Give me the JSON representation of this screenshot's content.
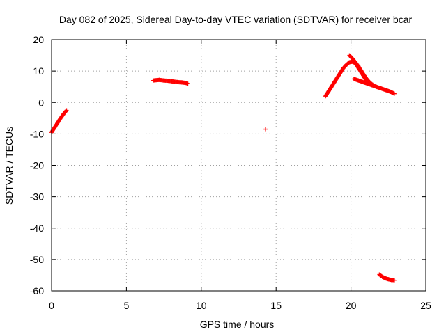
{
  "chart_data": {
    "type": "scatter",
    "title": "Day 082 of 2025, Sidereal Day-to-day VTEC variation (SDTVAR) for receiver bcar",
    "xlabel": "GPS time / hours",
    "ylabel": "SDTVAR / TECUs",
    "xlim": [
      0,
      25
    ],
    "ylim": [
      -60,
      20
    ],
    "xticks": [
      0,
      5,
      10,
      15,
      20,
      25
    ],
    "yticks": [
      -60,
      -50,
      -40,
      -30,
      -20,
      -10,
      0,
      10,
      20
    ],
    "grid": true,
    "marker": "plus",
    "color": "#ff0000",
    "series": [
      {
        "segments": [
          {
            "x": [
              0.0,
              0.2,
              0.4,
              0.6,
              0.8,
              1.0
            ],
            "y": [
              -9.5,
              -8.0,
              -6.5,
              -5.0,
              -3.7,
              -2.5
            ]
          },
          {
            "x": [
              6.8,
              7.2,
              7.5,
              7.8,
              8.1,
              8.4,
              8.7,
              9.0,
              9.1
            ],
            "y": [
              7.0,
              7.2,
              7.0,
              6.9,
              6.7,
              6.5,
              6.4,
              6.2,
              6.0
            ]
          },
          {
            "x": [
              14.3
            ],
            "y": [
              -8.5
            ]
          },
          {
            "x": [
              18.3,
              18.5,
              18.7,
              18.9,
              19.1,
              19.3,
              19.5,
              19.7,
              19.9,
              20.1,
              20.3,
              20.5,
              20.7,
              20.9,
              21.1
            ],
            "y": [
              2.0,
              3.5,
              5.0,
              6.5,
              8.0,
              9.5,
              11.0,
              12.0,
              12.8,
              13.0,
              12.5,
              11.0,
              9.5,
              8.0,
              6.5
            ]
          },
          {
            "x": [
              19.9,
              20.1,
              20.3,
              20.5,
              20.7,
              20.9,
              21.1,
              21.3,
              21.5
            ],
            "y": [
              15.0,
              14.0,
              12.8,
              11.5,
              10.0,
              8.5,
              7.2,
              6.2,
              5.5
            ]
          },
          {
            "x": [
              20.2,
              20.5,
              20.8,
              21.1,
              21.4,
              21.7,
              22.0,
              22.3,
              22.6,
              22.9
            ],
            "y": [
              7.5,
              7.0,
              6.5,
              6.0,
              5.5,
              5.0,
              4.5,
              4.0,
              3.5,
              2.8
            ]
          },
          {
            "x": [
              21.9,
              22.1,
              22.3,
              22.5,
              22.7,
              22.9
            ],
            "y": [
              -54.8,
              -55.5,
              -56.0,
              -56.3,
              -56.5,
              -56.6
            ]
          }
        ]
      }
    ]
  }
}
